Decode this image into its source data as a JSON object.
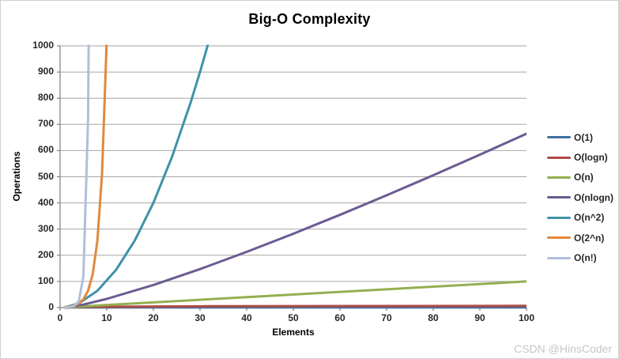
{
  "chart_data": {
    "type": "line",
    "title": "Big-O Complexity",
    "xlabel": "Elements",
    "ylabel": "Operations",
    "xlim": [
      0,
      100
    ],
    "ylim": [
      0,
      1000
    ],
    "xtick_step": 10,
    "ytick_step": 100,
    "grid": "horizontal-only",
    "legend_position": "right",
    "colors": {
      "gridline": "#a6a6a6",
      "axis": "#7f7f7f",
      "tick_text": "#262626",
      "watermark": "#c6c6c6"
    },
    "series": [
      {
        "name": "O(1)",
        "color": "#41719C",
        "points": [
          [
            1,
            1
          ],
          [
            100,
            1
          ]
        ]
      },
      {
        "name": "O(logn)",
        "color": "#AE4B47",
        "points": [
          [
            1,
            0
          ],
          [
            2,
            1
          ],
          [
            4,
            2
          ],
          [
            8,
            3
          ],
          [
            16,
            4
          ],
          [
            32,
            5
          ],
          [
            64,
            6
          ],
          [
            100,
            6.64
          ]
        ]
      },
      {
        "name": "O(n)",
        "color": "#94AF50",
        "points": [
          [
            1,
            1
          ],
          [
            100,
            100
          ]
        ]
      },
      {
        "name": "O(nlogn)",
        "color": "#6C5B93",
        "points": [
          [
            1,
            0
          ],
          [
            5,
            11.6
          ],
          [
            10,
            33.2
          ],
          [
            20,
            86.4
          ],
          [
            30,
            147.2
          ],
          [
            40,
            212.9
          ],
          [
            50,
            282.2
          ],
          [
            60,
            354.4
          ],
          [
            70,
            429
          ],
          [
            80,
            505.8
          ],
          [
            90,
            584.3
          ],
          [
            100,
            664.4
          ]
        ]
      },
      {
        "name": "O(n^2)",
        "color": "#3F93A8",
        "points": [
          [
            1,
            1
          ],
          [
            4,
            16
          ],
          [
            8,
            64
          ],
          [
            12,
            144
          ],
          [
            16,
            256
          ],
          [
            20,
            400
          ],
          [
            24,
            576
          ],
          [
            28,
            784
          ],
          [
            30,
            900
          ],
          [
            32,
            1024
          ]
        ]
      },
      {
        "name": "O(2^n)",
        "color": "#E08A3C",
        "points": [
          [
            1,
            2
          ],
          [
            2,
            4
          ],
          [
            3,
            8
          ],
          [
            4,
            16
          ],
          [
            5,
            32
          ],
          [
            6,
            64
          ],
          [
            7,
            128
          ],
          [
            8,
            256
          ],
          [
            9,
            512
          ],
          [
            10,
            1024
          ],
          [
            10.6,
            1552
          ]
        ]
      },
      {
        "name": "O(n!)",
        "color": "#AFBFDA",
        "points": [
          [
            1,
            1
          ],
          [
            2,
            2
          ],
          [
            3,
            6
          ],
          [
            4,
            24
          ],
          [
            5,
            120
          ],
          [
            6,
            720
          ],
          [
            6.5,
            1871
          ],
          [
            7,
            5040
          ]
        ]
      }
    ]
  },
  "watermark": {
    "text": "CSDN @HinsCoder"
  }
}
